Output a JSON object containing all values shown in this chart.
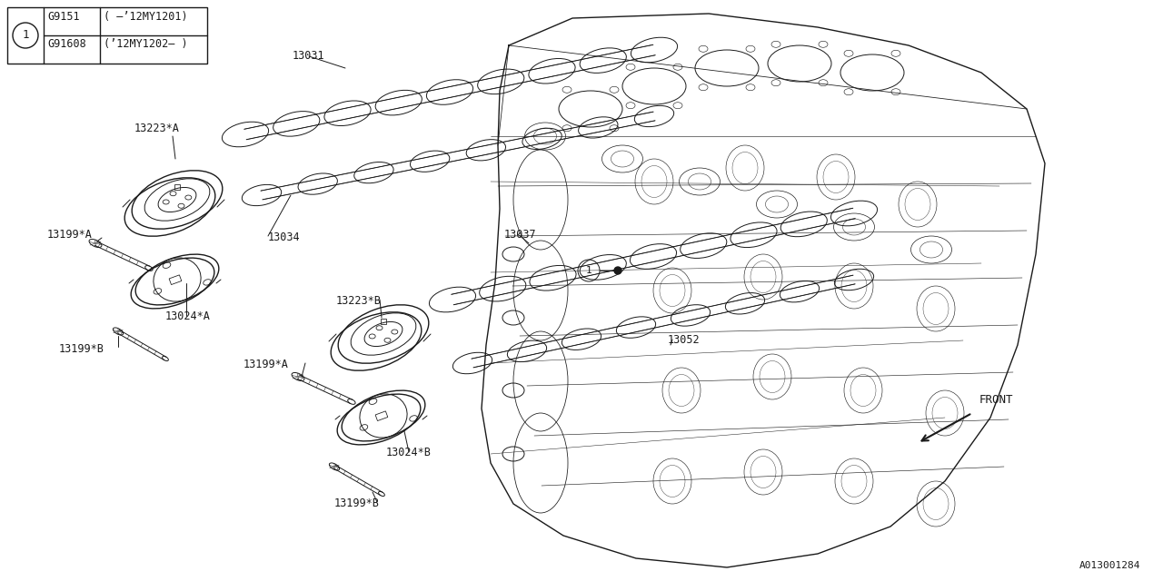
{
  "bg_color": "#ffffff",
  "line_color": "#1a1a1a",
  "text_color": "#1a1a1a",
  "fig_width": 12.8,
  "fig_height": 6.4,
  "dpi": 100,
  "table": {
    "rows": [
      [
        "G9151",
        "( –’12MY1201)"
      ],
      [
        "G91608",
        "(’12MY1202– )"
      ]
    ]
  }
}
